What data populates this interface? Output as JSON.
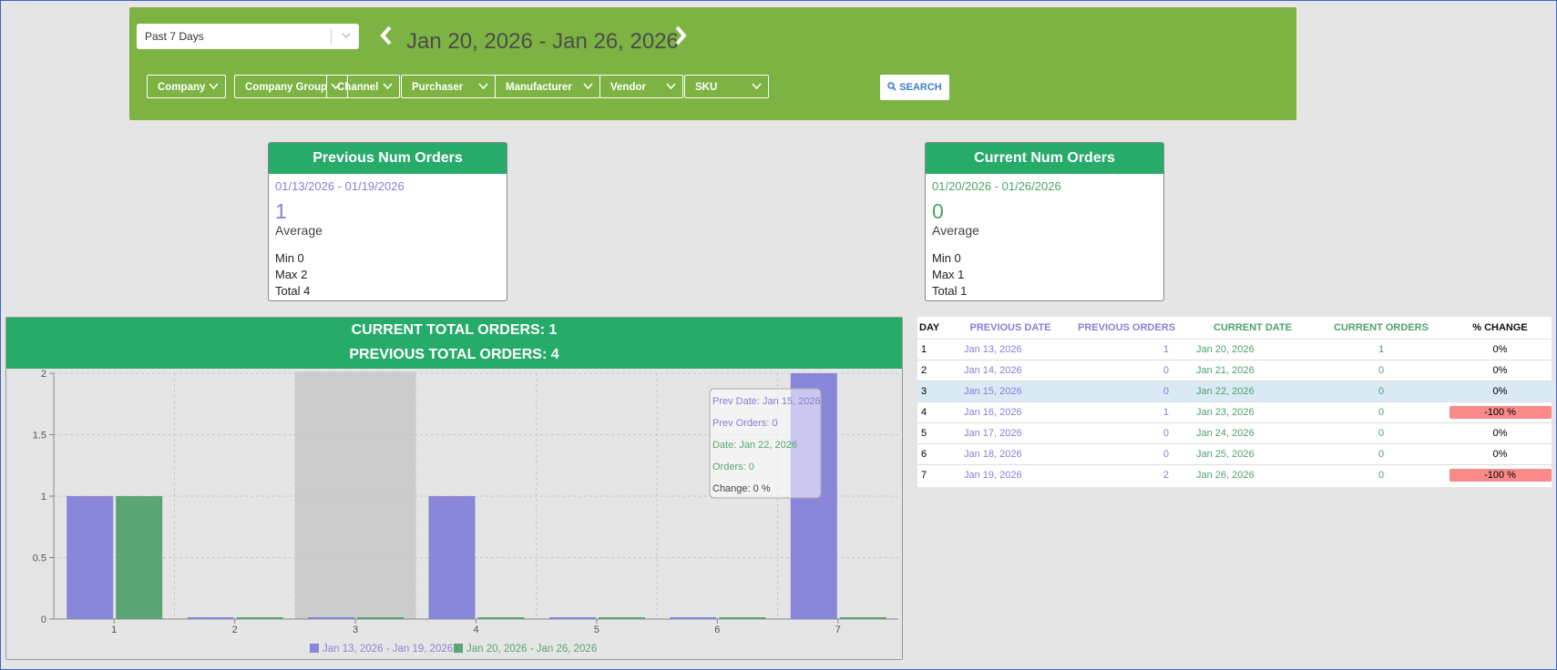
{
  "filters": {
    "range": "Past 7 Days",
    "date_range": "Jan 20, 2026 - Jan 26, 2026",
    "dropdowns": [
      "Company",
      "Company Group",
      "Channel",
      "Purchaser",
      "Manufacturer",
      "Vendor",
      "SKU"
    ],
    "search": "SEARCH"
  },
  "cards": [
    {
      "title": "Previous Num Orders",
      "dates": "01/13/2026 - 01/19/2026",
      "value": "1",
      "caption": "Average",
      "stats": [
        "Min 0",
        "Max 2",
        "Total 4"
      ]
    },
    {
      "title": "Current Num Orders",
      "dates": "01/20/2026 - 01/26/2026",
      "value": "0",
      "caption": "Average",
      "stats": [
        "Min 0",
        "Max 1",
        "Total 1"
      ]
    }
  ],
  "chart_data": {
    "type": "bar",
    "title": "CURRENT TOTAL ORDERS: 1",
    "subtitle": "PREVIOUS TOTAL ORDERS: 4",
    "categories": [
      "1",
      "2",
      "3",
      "4",
      "5",
      "6",
      "7"
    ],
    "series": [
      {
        "name": "Jan 13, 2026 - Jan 19, 2026",
        "color": "#8a86d9",
        "values": [
          1,
          0,
          0,
          1,
          0,
          0,
          2
        ]
      },
      {
        "name": "Jan 20, 2026 - Jan 26, 2026",
        "color": "#5ba574",
        "values": [
          1,
          0,
          0,
          0,
          0,
          0,
          0
        ]
      }
    ],
    "ylim": [
      0,
      2
    ],
    "yticks": [
      0,
      0.5,
      1,
      1.5,
      2
    ],
    "grid": true,
    "legend": "bottom",
    "tooltip": [
      "Prev Date: Jan 15, 2026",
      "Prev Orders: 0",
      "Date: Jan 22, 2026",
      "Orders: 0",
      "Change: 0 %"
    ]
  },
  "table": {
    "headers": [
      "DAY",
      "PREVIOUS DATE",
      "PREVIOUS ORDERS",
      "CURRENT DATE",
      "CURRENT ORDERS",
      "% CHANGE"
    ],
    "rows": [
      [
        "1",
        "Jan 13, 2026",
        "1",
        "Jan 20, 2026",
        "1",
        "0%"
      ],
      [
        "2",
        "Jan 14, 2026",
        "0",
        "Jan 21, 2026",
        "0",
        "0%"
      ],
      [
        "3",
        "Jan 15, 2026",
        "0",
        "Jan 22, 2026",
        "0",
        "0%"
      ],
      [
        "4",
        "Jan 16, 2026",
        "1",
        "Jan 23, 2026",
        "0",
        "-100 %"
      ],
      [
        "5",
        "Jan 17, 2026",
        "0",
        "Jan 24, 2026",
        "0",
        "0%"
      ],
      [
        "6",
        "Jan 18, 2026",
        "0",
        "Jan 25, 2026",
        "0",
        "0%"
      ],
      [
        "7",
        "Jan 19, 2026",
        "2",
        "Jan 26, 2026",
        "0",
        "-100 %"
      ]
    ]
  }
}
